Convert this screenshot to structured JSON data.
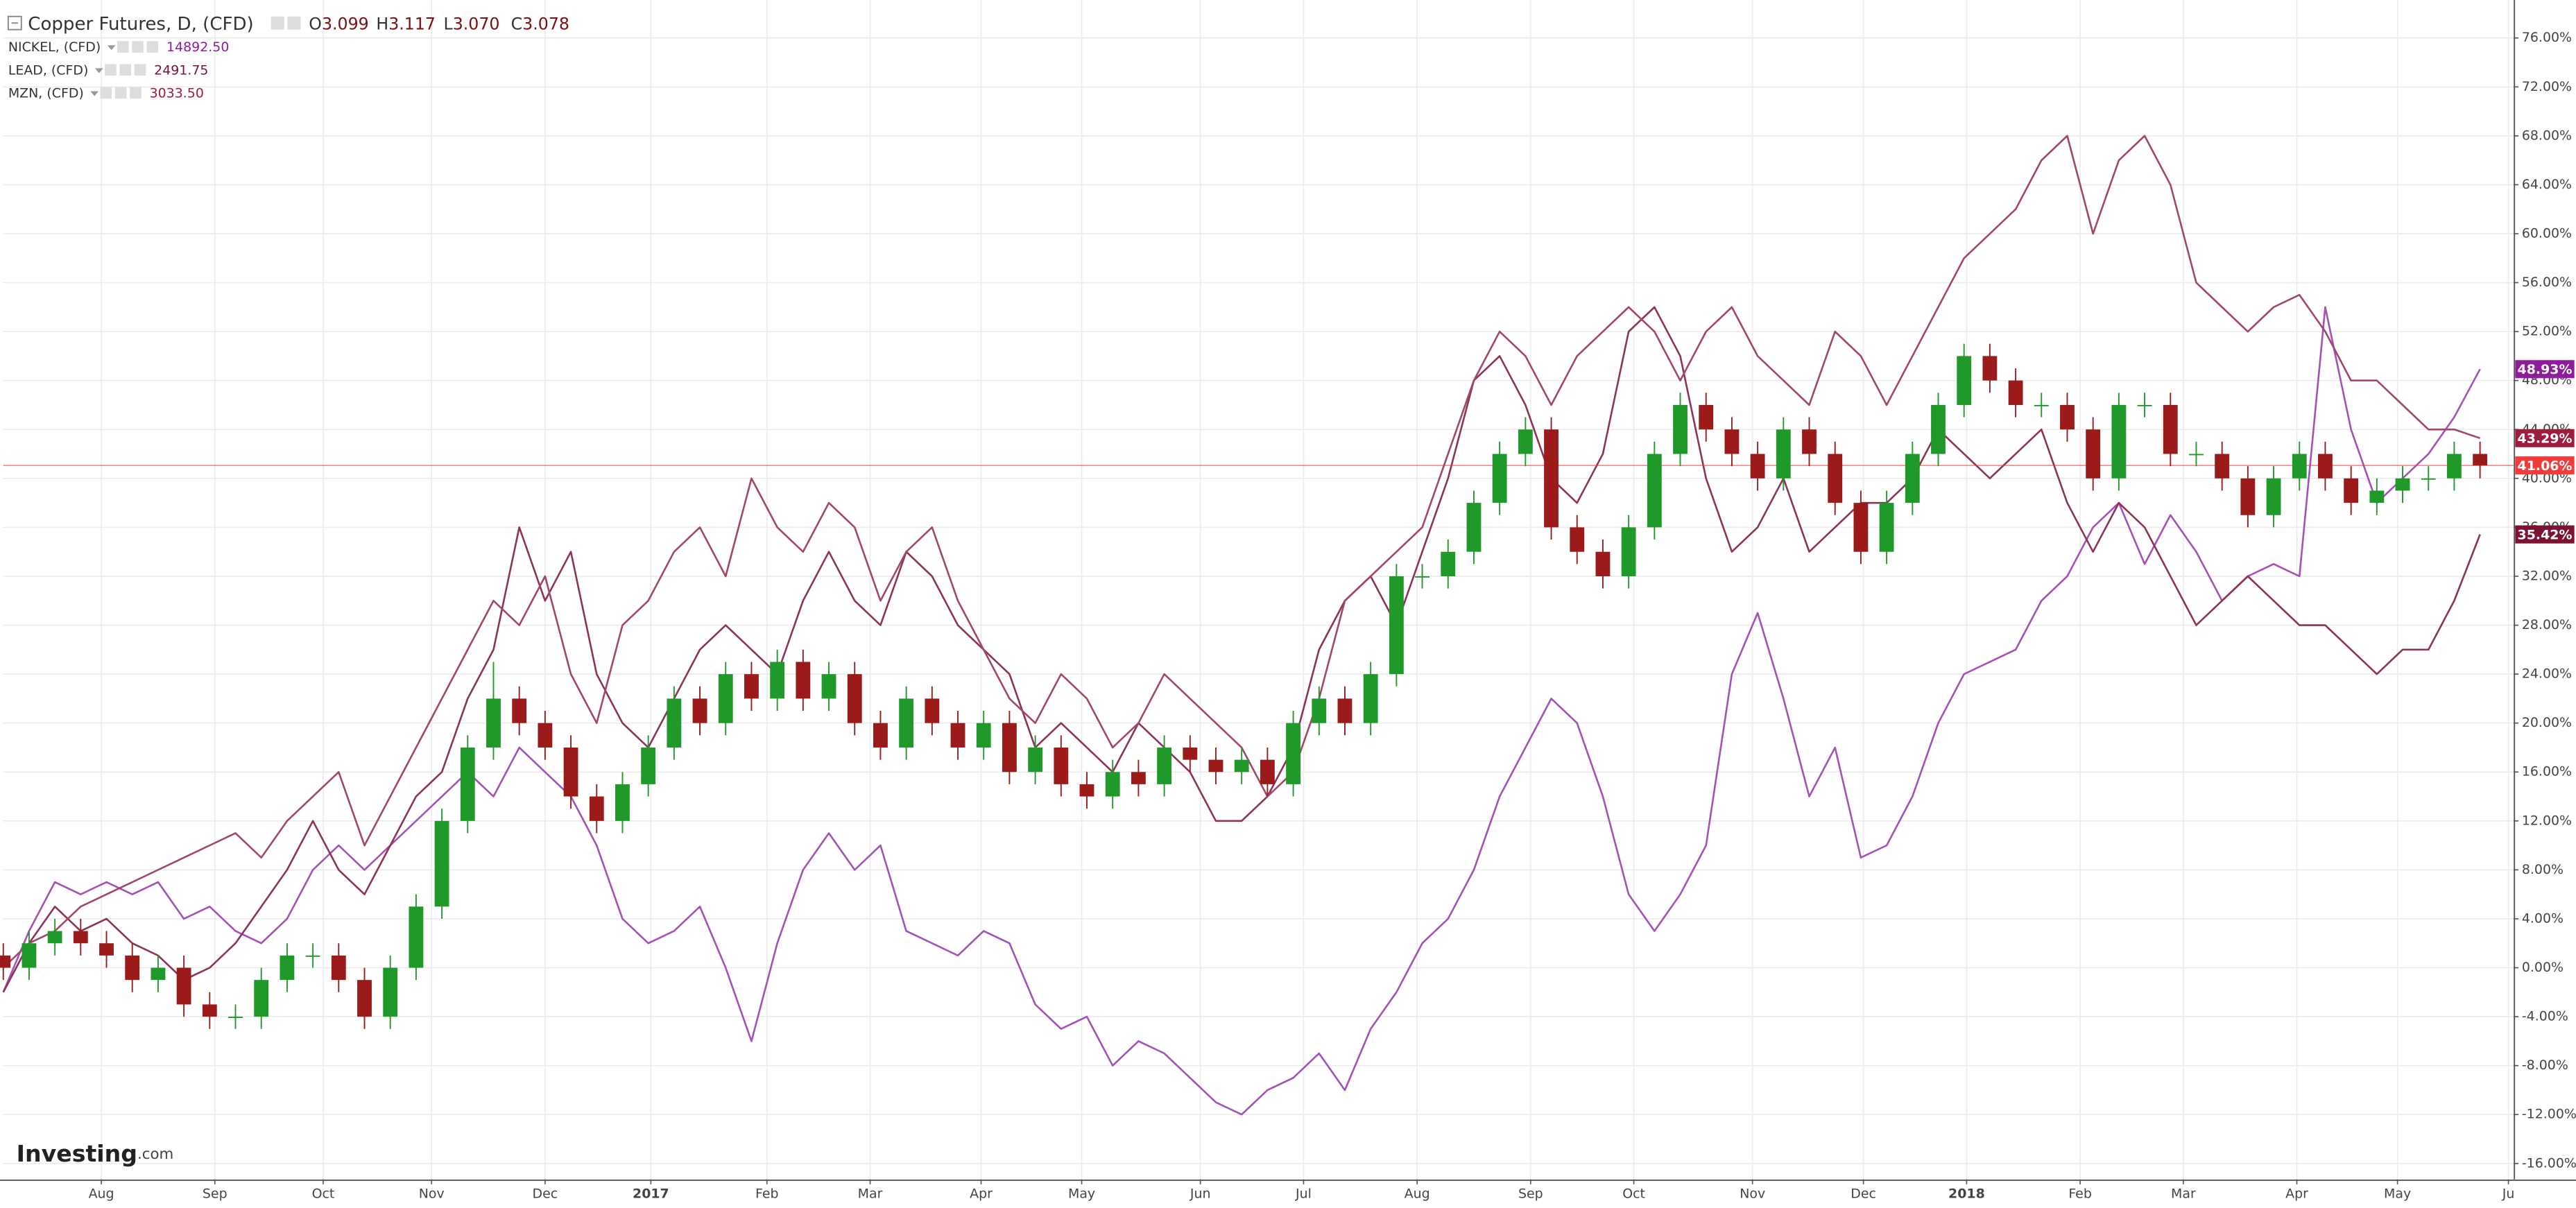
{
  "chart_data": {
    "type": "candlestick",
    "title": "Copper Futures, D, (CFD)",
    "legend_ohlc": [
      {
        "key": "O",
        "value": "3.099"
      },
      {
        "key": "H",
        "value": "3.117"
      },
      {
        "key": "L",
        "value": "3.070"
      },
      {
        "key": "C",
        "value": "3.078"
      }
    ],
    "watermark": {
      "brand": "Investing",
      "suffix": ".com"
    },
    "candles": {
      "up_color": "#1f9a2a",
      "down_color": "#9b1b1b",
      "last_color": "#f23b3b",
      "last_label": "41.06%",
      "open": [
        1,
        0,
        2,
        3,
        2,
        1,
        -1,
        0,
        -3,
        -4,
        -4,
        -1,
        1,
        1,
        -1,
        -4,
        0,
        5,
        12,
        18,
        22,
        20,
        18,
        14,
        12,
        15,
        18,
        22,
        20,
        24,
        22,
        25,
        22,
        24,
        20,
        18,
        22,
        20,
        18,
        20,
        16,
        18,
        15,
        14,
        16,
        15,
        18,
        17,
        16,
        17,
        15,
        20,
        22,
        20,
        24,
        32,
        32,
        34,
        38,
        42,
        44,
        36,
        34,
        32,
        36,
        42,
        46,
        44,
        42,
        40,
        44,
        42,
        38,
        34,
        38,
        42,
        46,
        50,
        48,
        46,
        46,
        44,
        40,
        46,
        46,
        42,
        42,
        40,
        37,
        40,
        42,
        40,
        38,
        39,
        40,
        40,
        42
      ],
      "high": [
        2,
        3,
        4,
        4,
        3,
        2,
        1,
        1,
        -2,
        -3,
        0,
        2,
        2,
        2,
        0,
        1,
        6,
        13,
        19,
        25,
        23,
        21,
        19,
        15,
        16,
        19,
        23,
        23,
        25,
        25,
        26,
        26,
        25,
        25,
        21,
        23,
        23,
        21,
        21,
        21,
        19,
        19,
        16,
        17,
        17,
        19,
        19,
        18,
        18,
        18,
        21,
        23,
        23,
        25,
        33,
        33,
        35,
        39,
        43,
        45,
        45,
        37,
        35,
        37,
        43,
        47,
        47,
        45,
        43,
        45,
        45,
        43,
        39,
        39,
        43,
        47,
        51,
        51,
        49,
        47,
        47,
        45,
        47,
        47,
        47,
        43,
        43,
        41,
        41,
        43,
        43,
        41,
        40,
        41,
        41,
        43,
        43
      ],
      "low": [
        -1,
        -1,
        1,
        1,
        0,
        -2,
        -2,
        -4,
        -5,
        -5,
        -5,
        -2,
        0,
        -2,
        -5,
        -5,
        -1,
        4,
        11,
        17,
        19,
        17,
        13,
        11,
        11,
        14,
        17,
        19,
        19,
        21,
        21,
        21,
        21,
        19,
        17,
        17,
        19,
        17,
        17,
        15,
        15,
        14,
        13,
        13,
        14,
        14,
        16,
        15,
        15,
        14,
        14,
        19,
        19,
        19,
        23,
        31,
        31,
        33,
        37,
        41,
        35,
        33,
        31,
        31,
        35,
        41,
        43,
        41,
        39,
        39,
        41,
        37,
        33,
        33,
        37,
        41,
        45,
        47,
        45,
        45,
        43,
        39,
        39,
        45,
        41,
        41,
        39,
        36,
        36,
        39,
        39,
        37,
        37,
        38,
        39,
        39,
        40
      ],
      "close": [
        0,
        2,
        3,
        2,
        1,
        -1,
        0,
        -3,
        -4,
        -4,
        -1,
        1,
        1,
        -1,
        -4,
        0,
        5,
        12,
        18,
        22,
        20,
        18,
        14,
        12,
        15,
        18,
        22,
        20,
        24,
        22,
        25,
        22,
        24,
        20,
        18,
        22,
        20,
        18,
        20,
        16,
        18,
        15,
        14,
        16,
        15,
        18,
        17,
        16,
        17,
        15,
        20,
        22,
        20,
        24,
        32,
        32,
        34,
        38,
        42,
        44,
        36,
        34,
        32,
        36,
        42,
        46,
        44,
        42,
        40,
        44,
        42,
        38,
        34,
        38,
        42,
        46,
        50,
        48,
        46,
        46,
        44,
        40,
        46,
        46,
        42,
        42,
        40,
        37,
        40,
        42,
        40,
        38,
        39,
        40,
        40,
        42,
        41.06
      ]
    },
    "series": [
      {
        "name": "NICKEL, (CFD)",
        "price": "14892.50",
        "color": "#a452b6",
        "label_color": "#8e1c9c",
        "last_label": "48.93%",
        "values": [
          -2,
          3,
          7,
          6,
          7,
          6,
          7,
          4,
          5,
          3,
          2,
          4,
          8,
          10,
          8,
          10,
          12,
          14,
          16,
          14,
          18,
          16,
          14,
          10,
          4,
          2,
          3,
          5,
          0,
          -6,
          2,
          8,
          11,
          8,
          10,
          3,
          2,
          1,
          3,
          2,
          -3,
          -5,
          -4,
          -8,
          -6,
          -7,
          -9,
          -11,
          -12,
          -10,
          -9,
          -7,
          -10,
          -5,
          -2,
          2,
          4,
          8,
          14,
          18,
          22,
          20,
          14,
          6,
          3,
          6,
          10,
          24,
          29,
          22,
          14,
          18,
          9,
          10,
          14,
          20,
          24,
          25,
          26,
          30,
          32,
          36,
          38,
          33,
          37,
          34,
          30,
          32,
          33,
          32,
          54,
          44,
          38,
          40,
          42,
          45,
          48.93
        ]
      },
      {
        "name": "LEAD, (CFD)",
        "price": "2491.75",
        "color": "#8e3358",
        "label_color": "#7d1232",
        "last_label": "35.42%",
        "values": [
          -2,
          2,
          5,
          3,
          4,
          2,
          1,
          -1,
          0,
          2,
          5,
          8,
          12,
          8,
          6,
          10,
          14,
          16,
          22,
          26,
          36,
          30,
          34,
          24,
          20,
          18,
          22,
          26,
          28,
          26,
          24,
          30,
          34,
          30,
          28,
          34,
          32,
          28,
          26,
          24,
          18,
          20,
          18,
          16,
          20,
          18,
          16,
          12,
          12,
          14,
          18,
          26,
          30,
          32,
          28,
          34,
          40,
          48,
          50,
          46,
          40,
          38,
          42,
          52,
          54,
          50,
          40,
          34,
          36,
          40,
          34,
          36,
          38,
          38,
          40,
          44,
          42,
          40,
          42,
          44,
          38,
          34,
          38,
          36,
          32,
          28,
          30,
          32,
          30,
          28,
          28,
          26,
          24,
          26,
          26,
          30,
          35.42
        ]
      },
      {
        "name": "MZN, (CFD)",
        "price": "3033.50",
        "color": "#a3466c",
        "label_color": "#a01c3e",
        "last_label": "43.29%",
        "values": [
          0,
          2,
          3,
          5,
          6,
          7,
          8,
          9,
          10,
          11,
          9,
          12,
          14,
          16,
          10,
          14,
          18,
          22,
          26,
          30,
          28,
          32,
          24,
          20,
          28,
          30,
          34,
          36,
          32,
          40,
          36,
          34,
          38,
          36,
          30,
          34,
          36,
          30,
          26,
          22,
          20,
          24,
          22,
          18,
          20,
          24,
          22,
          20,
          18,
          14,
          16,
          22,
          30,
          32,
          34,
          36,
          42,
          48,
          52,
          50,
          46,
          50,
          52,
          54,
          52,
          48,
          52,
          54,
          50,
          48,
          46,
          52,
          50,
          46,
          50,
          54,
          58,
          60,
          62,
          66,
          68,
          60,
          66,
          68,
          64,
          56,
          54,
          52,
          54,
          55,
          52,
          48,
          48,
          46,
          44,
          44,
          43.29
        ]
      }
    ],
    "xlim": [
      0,
      97.3
    ],
    "xticks": [
      {
        "value": 3.8,
        "label": "Aug"
      },
      {
        "value": 8.2,
        "label": "Sep"
      },
      {
        "value": 12.4,
        "label": "Oct"
      },
      {
        "value": 16.6,
        "label": "Nov"
      },
      {
        "value": 21,
        "label": "Dec"
      },
      {
        "value": 25.1,
        "label": "2017"
      },
      {
        "value": 29.6,
        "label": "Feb"
      },
      {
        "value": 33.6,
        "label": "Mar"
      },
      {
        "value": 37.9,
        "label": "Apr"
      },
      {
        "value": 41.8,
        "label": "May"
      },
      {
        "value": 46.4,
        "label": "Jun"
      },
      {
        "value": 50.4,
        "label": "Jul"
      },
      {
        "value": 54.8,
        "label": "Aug"
      },
      {
        "value": 59.2,
        "label": "Sep"
      },
      {
        "value": 63.2,
        "label": "Oct"
      },
      {
        "value": 67.8,
        "label": "Nov"
      },
      {
        "value": 72.1,
        "label": "Dec"
      },
      {
        "value": 76.1,
        "label": "2018"
      },
      {
        "value": 80.5,
        "label": "Feb"
      },
      {
        "value": 84.5,
        "label": "Mar"
      },
      {
        "value": 88.9,
        "label": "Apr"
      },
      {
        "value": 92.8,
        "label": "May"
      },
      {
        "value": 97.1,
        "label": "Ju"
      }
    ],
    "ylim": [
      -17.3,
      79.1
    ],
    "yticks": [
      {
        "value": 76,
        "label": "76.00%"
      },
      {
        "value": 72,
        "label": "72.00%"
      },
      {
        "value": 68,
        "label": "68.00%"
      },
      {
        "value": 64,
        "label": "64.00%"
      },
      {
        "value": 60,
        "label": "60.00%"
      },
      {
        "value": 56,
        "label": "56.00%"
      },
      {
        "value": 52,
        "label": "52.00%"
      },
      {
        "value": 48,
        "label": "48.00%"
      },
      {
        "value": 44,
        "label": "44.00%"
      },
      {
        "value": 40,
        "label": "40.00%"
      },
      {
        "value": 36,
        "label": "36.00%"
      },
      {
        "value": 32,
        "label": "32.00%"
      },
      {
        "value": 28,
        "label": "28.00%"
      },
      {
        "value": 24,
        "label": "24.00%"
      },
      {
        "value": 20,
        "label": "20.00%"
      },
      {
        "value": 16,
        "label": "16.00%"
      },
      {
        "value": 12,
        "label": "12.00%"
      },
      {
        "value": 8,
        "label": "8.00%"
      },
      {
        "value": 4,
        "label": "4.00%"
      },
      {
        "value": 0,
        "label": "0.00%"
      },
      {
        "value": -4,
        "label": "-4.00%"
      },
      {
        "value": -8,
        "label": "-8.00%"
      },
      {
        "value": -12,
        "label": "-12.00%"
      },
      {
        "value": -16,
        "label": "-16.00%"
      }
    ],
    "grid": true
  }
}
